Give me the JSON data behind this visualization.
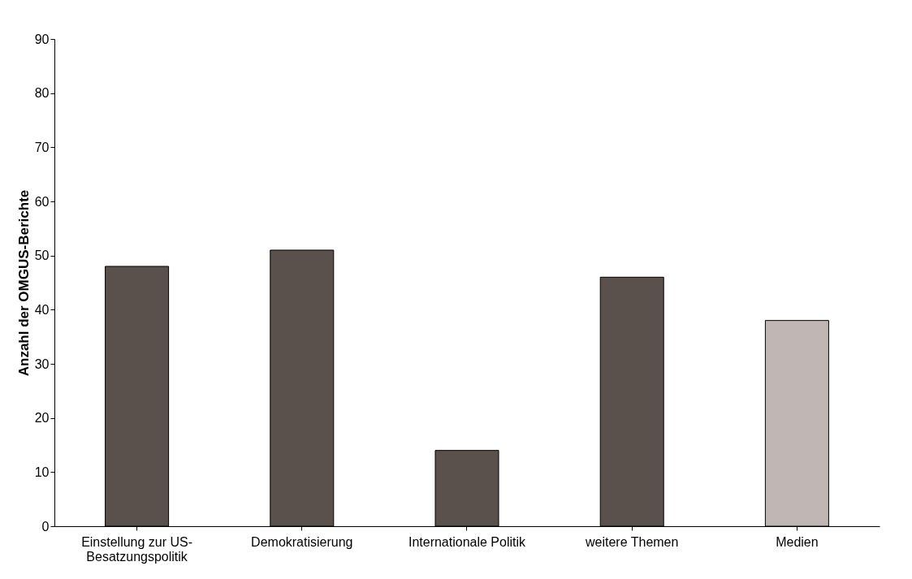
{
  "chart_data": {
    "type": "bar",
    "categories": [
      "Einstellung zur US-Besatzungspolitik",
      "Demokratisierung",
      "Internationale Politik",
      "weitere Themen",
      "Medien"
    ],
    "values": [
      48,
      51,
      14,
      46,
      38
    ],
    "colors": [
      "#5a504c",
      "#5a504c",
      "#5a504c",
      "#5a504c",
      "#c0b6b3"
    ],
    "ylabel": "Anzahl der OMGUS-Berichte",
    "ylim": [
      0,
      90
    ],
    "yticks": [
      0,
      10,
      20,
      30,
      40,
      50,
      60,
      70,
      80,
      90
    ],
    "grid": false
  }
}
